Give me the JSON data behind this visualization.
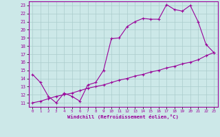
{
  "xlabel": "Windchill (Refroidissement éolien,°C)",
  "bg_color": "#cce8e8",
  "grid_color": "#aacccc",
  "line_color": "#990099",
  "xlim": [
    -0.5,
    23.5
  ],
  "ylim": [
    10.5,
    23.5
  ],
  "yticks": [
    11,
    12,
    13,
    14,
    15,
    16,
    17,
    18,
    19,
    20,
    21,
    22,
    23
  ],
  "xticks": [
    0,
    1,
    2,
    3,
    4,
    5,
    6,
    7,
    8,
    9,
    10,
    11,
    12,
    13,
    14,
    15,
    16,
    17,
    18,
    19,
    20,
    21,
    22,
    23
  ],
  "line1_x": [
    0,
    1,
    2,
    3,
    4,
    5,
    6,
    7,
    8,
    9,
    10,
    11,
    12,
    13,
    14,
    15,
    16,
    17,
    18,
    19,
    20,
    21,
    22,
    23
  ],
  "line1_y": [
    14.5,
    13.5,
    11.8,
    11.0,
    12.2,
    11.8,
    11.2,
    13.2,
    13.5,
    15.0,
    18.9,
    19.0,
    20.4,
    21.0,
    21.4,
    21.3,
    21.3,
    23.1,
    22.5,
    22.3,
    23.0,
    21.0,
    18.2,
    17.2
  ],
  "line2_x": [
    0,
    1,
    2,
    3,
    4,
    5,
    6,
    7,
    8,
    9,
    10,
    11,
    12,
    13,
    14,
    15,
    16,
    17,
    18,
    19,
    20,
    21,
    22,
    23
  ],
  "line2_y": [
    11.0,
    11.2,
    11.5,
    11.8,
    12.0,
    12.2,
    12.5,
    12.8,
    13.0,
    13.2,
    13.5,
    13.8,
    14.0,
    14.3,
    14.5,
    14.8,
    15.0,
    15.3,
    15.5,
    15.8,
    16.0,
    16.3,
    16.8,
    17.2
  ]
}
